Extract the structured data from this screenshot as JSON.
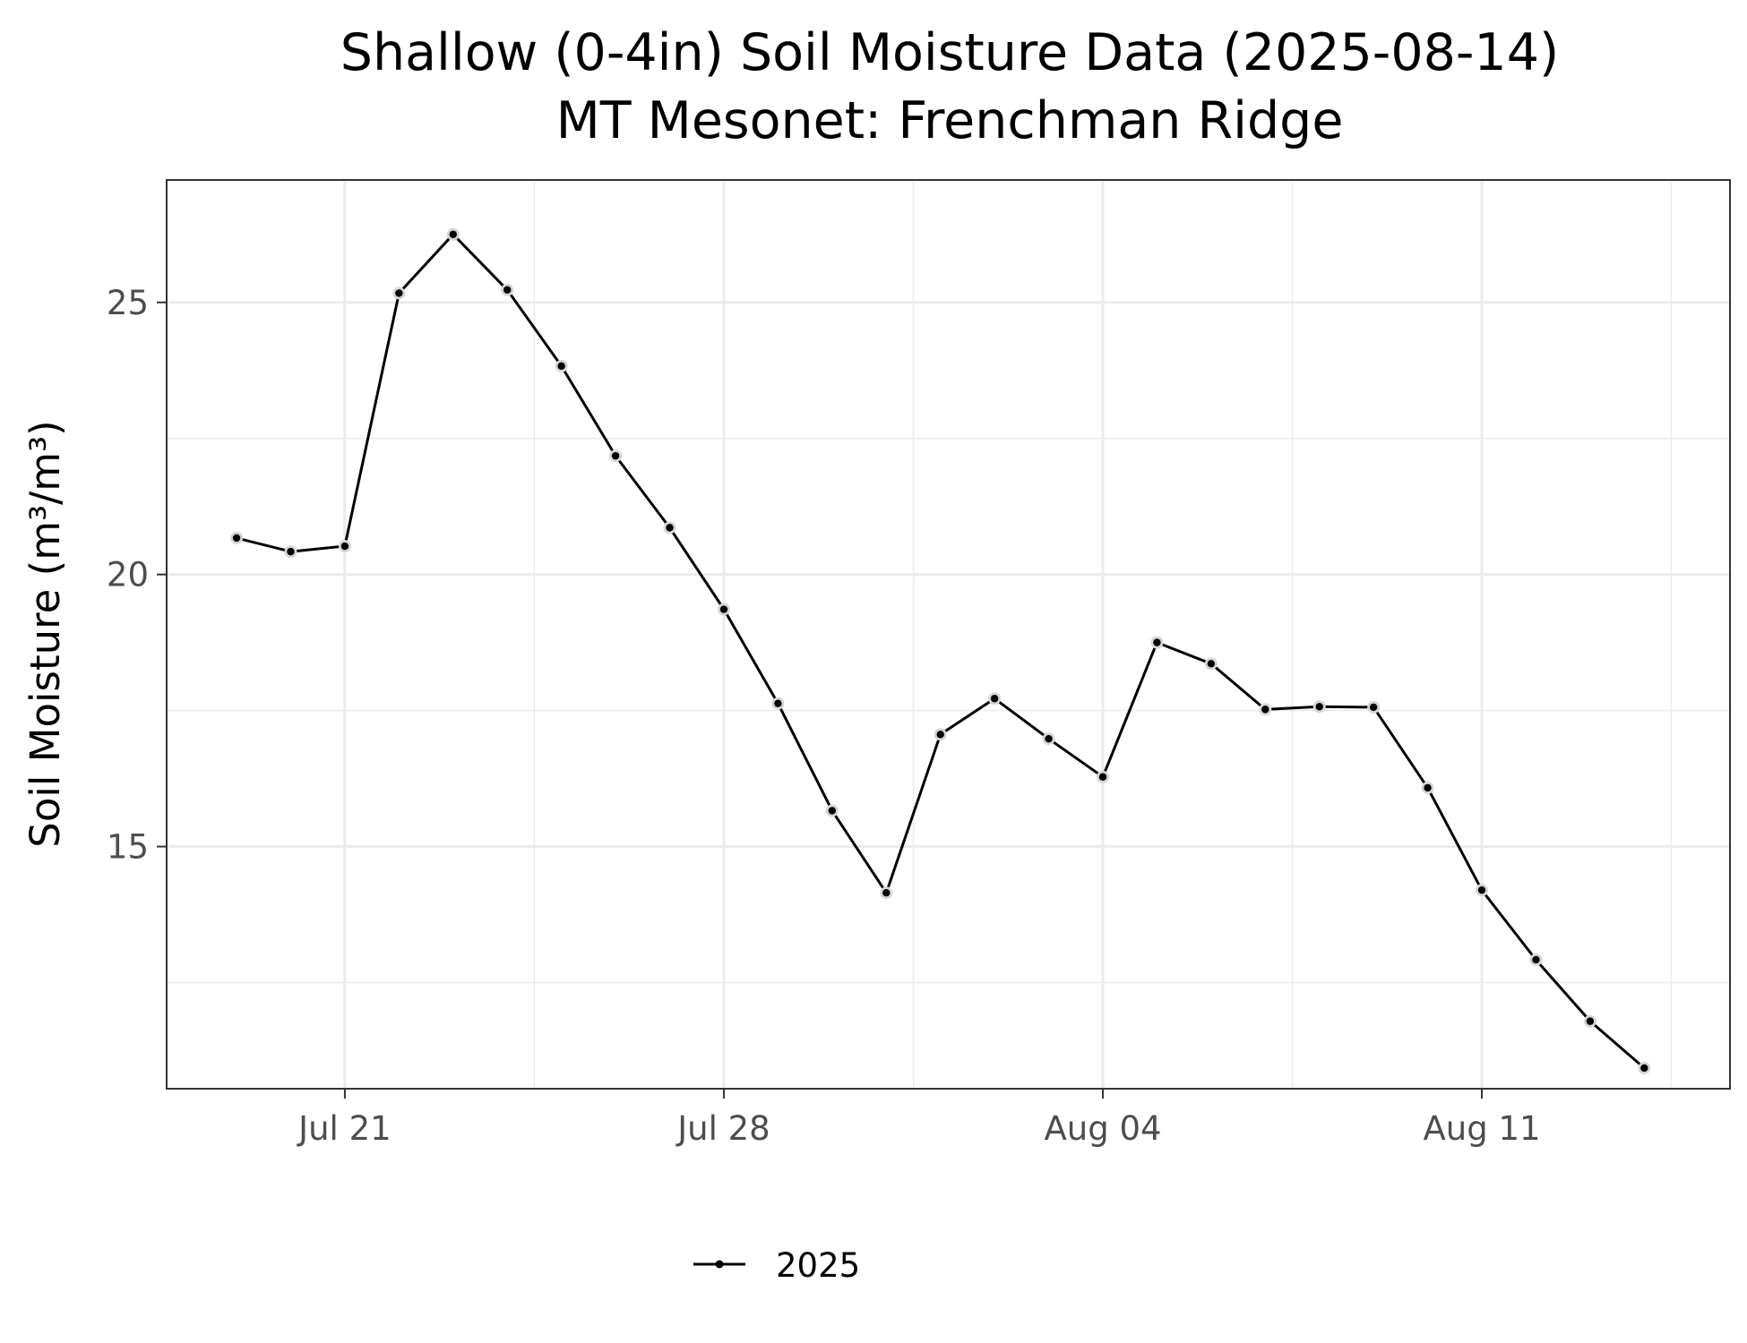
{
  "chart_data": {
    "type": "line",
    "title": "Shallow (0-4in) Soil Moisture Data (2025-08-14)",
    "subtitle": "MT Mesonet: Frenchman Ridge",
    "xlabel": "",
    "ylabel": "Soil Moisture (m³/m³)",
    "x_tick_labels": [
      "Jul 21",
      "Jul 28",
      "Aug 04",
      "Aug 11"
    ],
    "x_ticks": [
      "2025-07-21",
      "2025-07-28",
      "2025-08-04",
      "2025-08-11"
    ],
    "y_ticks": [
      15,
      20,
      25
    ],
    "ylim": [
      10.55,
      27.25
    ],
    "xlim": [
      "2025-07-17T17:00",
      "2025-08-15T14:00"
    ],
    "grid": true,
    "legend_position": "bottom",
    "series": [
      {
        "name": "2025",
        "color": "#000000",
        "x": [
          "2025-07-19",
          "2025-07-20",
          "2025-07-21",
          "2025-07-22",
          "2025-07-23",
          "2025-07-24",
          "2025-07-25",
          "2025-07-26",
          "2025-07-27",
          "2025-07-28",
          "2025-07-29",
          "2025-07-30",
          "2025-07-31",
          "2025-08-01",
          "2025-08-02",
          "2025-08-03",
          "2025-08-04",
          "2025-08-05",
          "2025-08-06",
          "2025-08-07",
          "2025-08-08",
          "2025-08-09",
          "2025-08-10",
          "2025-08-11",
          "2025-08-12",
          "2025-08-13",
          "2025-08-14"
        ],
        "values": [
          20.67,
          20.42,
          20.52,
          25.17,
          26.25,
          25.23,
          23.83,
          22.18,
          20.86,
          19.36,
          17.63,
          15.66,
          14.15,
          17.06,
          17.72,
          16.98,
          16.28,
          18.75,
          18.36,
          17.52,
          17.57,
          17.56,
          16.08,
          14.2,
          12.92,
          11.79,
          10.93
        ]
      }
    ]
  }
}
